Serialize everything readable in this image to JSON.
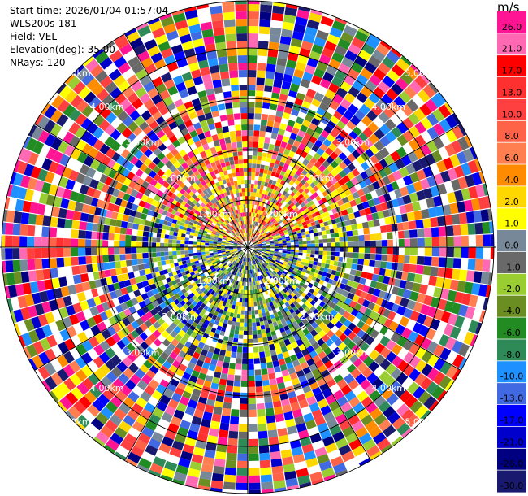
{
  "header": {
    "start_time": "Start time: 2026/01/04 01:57:04",
    "instrument": "WLS200s-181",
    "field": "Field: VEL",
    "elevation": "Elevation(deg): 35.00",
    "nrays": "NRays: 120"
  },
  "colorbar": {
    "unit_label": "m/s",
    "ticks": [
      "26.0",
      "21.0",
      "17.0",
      "13.0",
      "10.0",
      "8.0",
      "6.0",
      "4.0",
      "2.0",
      "1.0",
      "0.0",
      "-1.0",
      "-2.0",
      "-4.0",
      "-6.0",
      "-8.0",
      "-10.0",
      "-13.0",
      "-17.0",
      "-21.0",
      "-26.0",
      "-30.0"
    ],
    "colors": [
      "#ff1493",
      "#ff69b4",
      "#ff0000",
      "#ff3030",
      "#ff4040",
      "#ff6347",
      "#ff7f50",
      "#ff8c00",
      "#ffd700",
      "#ffff00",
      "#778899",
      "#696969",
      "#9acd32",
      "#6b8e23",
      "#228b22",
      "#2e8b57",
      "#1e90ff",
      "#4169e1",
      "#0000ff",
      "#0000cd",
      "#000080",
      "#191970"
    ]
  },
  "chart_data": {
    "type": "ppi",
    "field": "VEL",
    "units": "m/s",
    "elevation_deg": 35.0,
    "nrays": 120,
    "range_rings_km": [
      {
        "label": "1.00km"
      },
      {
        "label": "2.00km"
      },
      {
        "label": "3.00km"
      },
      {
        "label": "4.00km"
      },
      {
        "label": "5.00km"
      }
    ],
    "value_range": [
      -30.0,
      26.0
    ]
  }
}
